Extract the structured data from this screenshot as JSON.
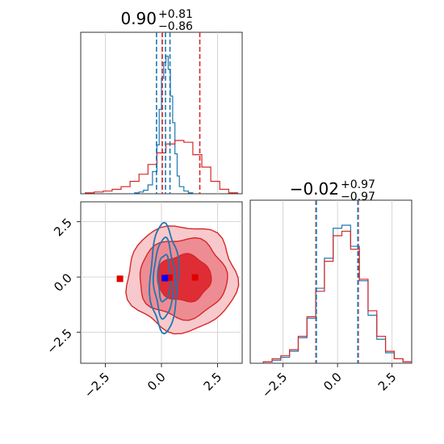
{
  "chart_data": {
    "type": "corner",
    "panels": [
      {
        "id": "hist-param1",
        "type": "histogram",
        "title": {
          "value": "0.90",
          "plus": "+0.81",
          "minus": "−0.86"
        },
        "xlim": [
          -3.6,
          3.6
        ],
        "grid": true,
        "series": [
          {
            "color": "#1f77b4",
            "bins": [
              -1.4,
              -1.2,
              -1.0,
              -0.8,
              -0.6,
              -0.4,
              -0.2,
              -0.1,
              0.0,
              0.1,
              0.2,
              0.3,
              0.4,
              0.5,
              0.6,
              0.7,
              0.8,
              1.0,
              1.2,
              1.4
            ],
            "counts": [
              0,
              1,
              2,
              4,
              10,
              25,
              55,
              95,
              130,
              148,
              155,
              140,
              110,
              80,
              45,
              20,
              8,
              3,
              1
            ],
            "quantile_lines": [
              -0.22,
              0.18,
              0.38
            ]
          },
          {
            "color": "#d62728",
            "bins": [
              -3.4,
              -3.0,
              -2.6,
              -2.2,
              -1.8,
              -1.4,
              -1.0,
              -0.6,
              -0.2,
              0.2,
              0.6,
              1.0,
              1.4,
              1.8,
              2.2,
              2.6,
              3.0,
              3.4
            ],
            "counts": [
              1,
              2,
              3,
              5,
              8,
              14,
              22,
              33,
              46,
              56,
              60,
              58,
              44,
              30,
              14,
              5,
              1
            ],
            "quantile_lines": [
              0.04,
              1.71
            ]
          }
        ]
      },
      {
        "id": "hist-param2",
        "type": "histogram",
        "title": {
          "value": "−0.02",
          "plus": "+0.97",
          "minus": "−0.97"
        },
        "xlim": [
          -4.0,
          3.4
        ],
        "xticks": [
          -2.5,
          0.0,
          2.5
        ],
        "xticklabels": [
          "−2.5",
          "0.0",
          "2.5"
        ],
        "grid": true,
        "series": [
          {
            "color": "#1f77b4",
            "bins": [
              -3.4,
              -3.0,
              -2.6,
              -2.2,
              -1.8,
              -1.4,
              -1.0,
              -0.6,
              -0.2,
              0.2,
              0.6,
              1.0,
              1.4,
              1.8,
              2.2,
              2.6,
              3.0,
              3.4
            ],
            "counts": [
              1,
              2,
              4,
              8,
              17,
              30,
              50,
              70,
              90,
              92,
              78,
              55,
              32,
              16,
              7,
              3,
              1
            ],
            "quantile_lines": [
              -0.97,
              0.93
            ]
          },
          {
            "color": "#d62728",
            "bins": [
              -3.4,
              -3.0,
              -2.6,
              -2.2,
              -1.8,
              -1.4,
              -1.0,
              -0.6,
              -0.2,
              0.2,
              0.6,
              1.0,
              1.4,
              1.8,
              2.2,
              2.6,
              3.0,
              3.4
            ],
            "counts": [
              1,
              3,
              5,
              9,
              18,
              31,
              48,
              68,
              85,
              88,
              76,
              56,
              35,
              18,
              8,
              3,
              1
            ],
            "quantile_lines": [
              -0.99,
              0.95
            ]
          }
        ]
      },
      {
        "id": "joint",
        "type": "contour",
        "xlim": [
          -3.6,
          3.6
        ],
        "ylim": [
          -3.9,
          3.4
        ],
        "xticks": [
          -2.5,
          0.0,
          2.5
        ],
        "xticklabels": [
          "−2.5",
          "0.0",
          "2.5"
        ],
        "yticks": [
          2.5,
          0.0,
          -2.5
        ],
        "yticklabels": [
          "2.5",
          "0.0",
          "−2.5"
        ],
        "grid": true,
        "red": {
          "color": "#d62728",
          "contours": [
            {
              "cx": 1.0,
              "cy": -0.05,
              "rx": 1.2,
              "ry": 1.05,
              "alpha": 0.95
            },
            {
              "cx": 0.95,
              "cy": -0.05,
              "rx": 1.95,
              "ry": 1.8,
              "alpha": 0.6
            },
            {
              "cx": 0.9,
              "cy": -0.05,
              "rx": 2.45,
              "ry": 2.4,
              "alpha": 0.45
            }
          ],
          "markers": [
            [
              -1.85,
              -0.08
            ],
            [
              0.35,
              -0.03
            ],
            [
              1.5,
              -0.02
            ]
          ]
        },
        "blue": {
          "color": "#1f77b4",
          "contours": [
            {
              "cx": 0.12,
              "cy": -0.05,
              "rx": 0.28,
              "ry": 1.05
            },
            {
              "cx": 0.12,
              "cy": -0.05,
              "rx": 0.45,
              "ry": 1.75
            },
            {
              "cx": 0.12,
              "cy": -0.05,
              "rx": 0.62,
              "ry": 2.4
            }
          ],
          "markers": [
            [
              0.15,
              -0.05
            ]
          ]
        }
      }
    ]
  }
}
